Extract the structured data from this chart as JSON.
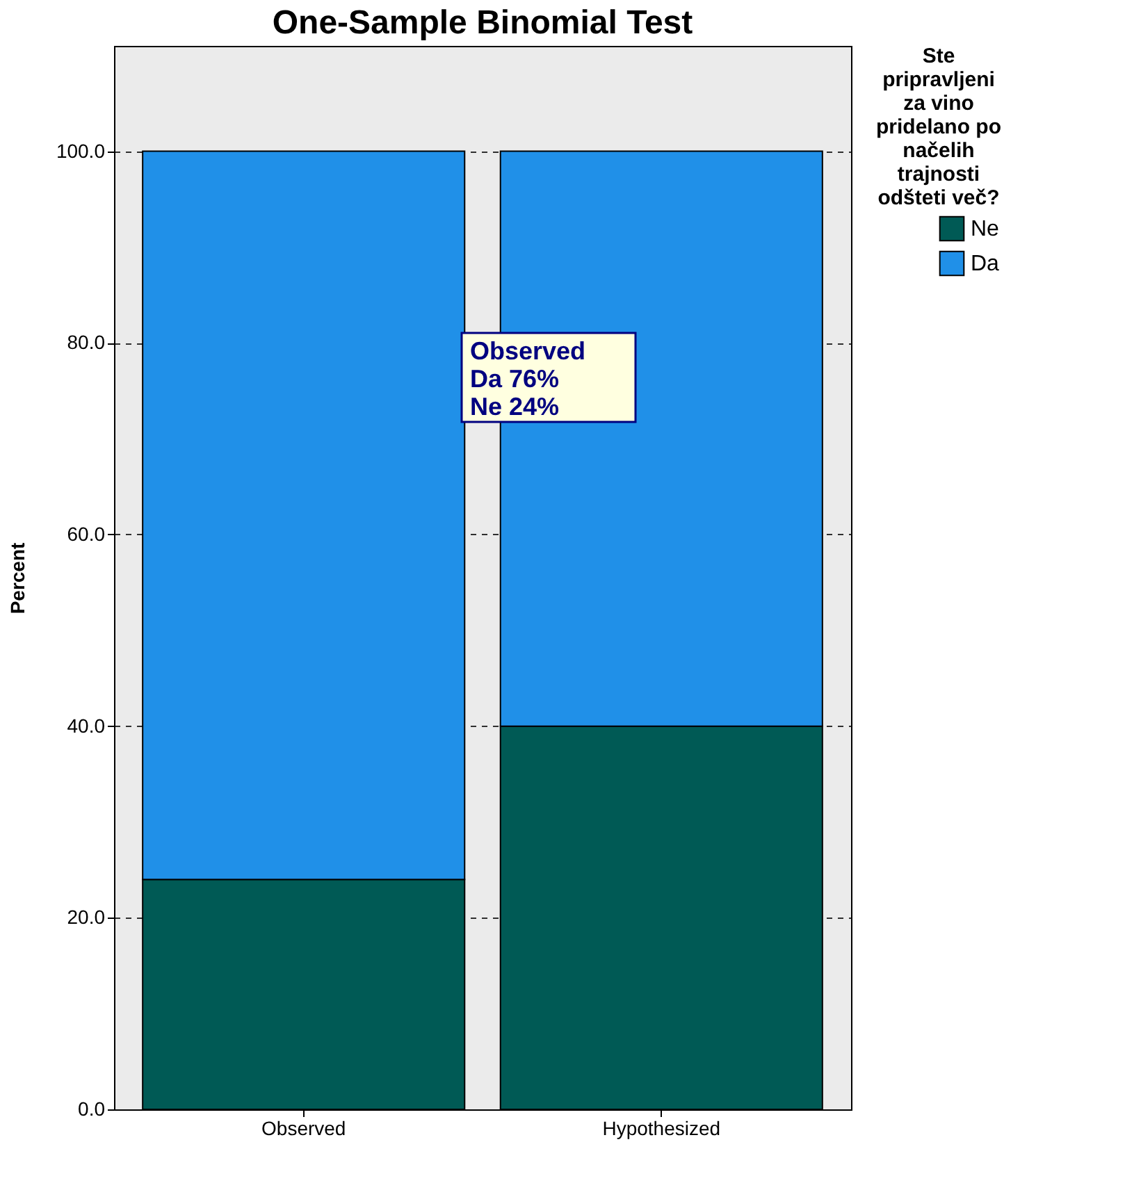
{
  "chart_data": {
    "type": "bar",
    "title": "One-Sample Binomial Test",
    "ylabel": "Percent",
    "legend_title": "Ste pripravljeni za vino pridelano po načelih trajnosti odšteti več?",
    "categories": [
      "Observed",
      "Hypothesized"
    ],
    "stacked": true,
    "series": [
      {
        "name": "Ne",
        "color": "#005a55",
        "values": [
          24,
          40
        ]
      },
      {
        "name": "Da",
        "color": "#2090e8",
        "values": [
          76,
          60
        ]
      }
    ],
    "ylim": [
      0,
      111
    ],
    "yticks": [
      {
        "value": 0,
        "label": "0.0"
      },
      {
        "value": 20,
        "label": "20.0"
      },
      {
        "value": 40,
        "label": "40.0"
      },
      {
        "value": 60,
        "label": "60.0"
      },
      {
        "value": 80,
        "label": "80.0"
      },
      {
        "value": 100,
        "label": "100.0"
      }
    ],
    "grid": "y",
    "legend": "right",
    "annotations": [
      "Observed\nDa 76%\nNe 24%"
    ]
  }
}
